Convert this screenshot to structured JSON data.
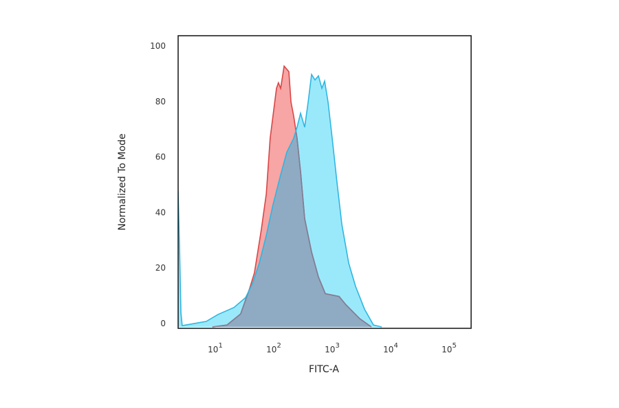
{
  "chart_data": {
    "type": "area",
    "title": "",
    "xlabel": "FITC-A",
    "ylabel": "Normalized To Mode",
    "xscale": "log",
    "xlim": [
      2.08,
      219000
    ],
    "ylim": [
      0,
      101
    ],
    "grid": false,
    "legend": "none",
    "x_ticks": [
      {
        "value": 10,
        "base": "10",
        "exp": "1"
      },
      {
        "value": 100,
        "base": "10",
        "exp": "2"
      },
      {
        "value": 1000,
        "base": "10",
        "exp": "3"
      },
      {
        "value": 10000,
        "base": "10",
        "exp": "4"
      },
      {
        "value": 100000,
        "base": "10",
        "exp": "5"
      }
    ],
    "y_ticks": [
      {
        "value": 0,
        "label": "0"
      },
      {
        "value": 20,
        "label": "20"
      },
      {
        "value": 40,
        "label": "40"
      },
      {
        "value": 60,
        "label": "60"
      },
      {
        "value": 80,
        "label": "80"
      },
      {
        "value": 100,
        "label": "100"
      }
    ],
    "series": [
      {
        "color_fill": "#f7a5a5",
        "color_line": "#d94545",
        "x": [
          8,
          14.2,
          24.4,
          34.8,
          42,
          55,
          67,
          78,
          100,
          108,
          118,
          135,
          163,
          177,
          197,
          225,
          258,
          304,
          398,
          522,
          684,
          1178,
          1542,
          2655,
          4207
        ],
        "y": [
          0,
          0.7,
          4.7,
          13.9,
          19.6,
          35,
          48,
          68,
          86,
          88,
          86,
          94,
          92,
          81,
          76,
          68,
          56,
          39,
          27,
          18,
          12,
          11,
          8,
          3,
          0
        ]
      },
      {
        "color_fill": "#9ae9fb",
        "color_line": "#2fb5e0",
        "x": [
          2.08,
          2.19,
          2.32,
          2.44,
          2.8,
          6.3,
          10,
          18.7,
          29.6,
          38.7,
          50.8,
          67,
          87,
          115,
          150,
          197,
          225,
          258,
          304,
          348,
          398,
          456,
          522,
          598,
          666,
          762,
          897,
          1084,
          1312,
          1718,
          2253,
          3206,
          4560,
          6310
        ],
        "y": [
          49,
          30,
          5,
          0.5,
          0.7,
          2,
          4.5,
          7,
          10.6,
          15.6,
          23,
          33,
          44,
          54,
          63,
          68,
          72,
          77,
          72,
          81,
          91,
          89,
          90.5,
          86,
          88.6,
          81,
          68,
          52,
          37,
          23,
          14.6,
          6.4,
          0.7,
          0
        ]
      }
    ],
    "overlap_color": "#8fabc3",
    "overlap_line": "#7c8098"
  }
}
